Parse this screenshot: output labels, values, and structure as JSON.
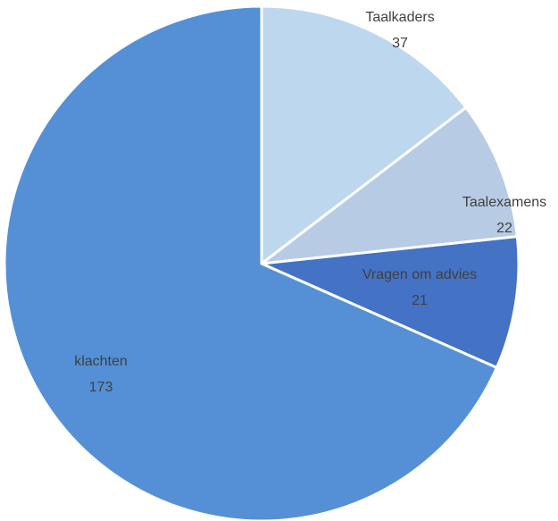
{
  "chart_data": {
    "type": "pie",
    "categories": [
      "Taalkaders",
      "Taalexamens",
      "Vragen om advies",
      "klachten"
    ],
    "values": [
      37,
      22,
      21,
      173
    ],
    "colors": [
      "#bdd7ee",
      "#b8cbe4",
      "#4472c4",
      "#5590d6"
    ]
  }
}
